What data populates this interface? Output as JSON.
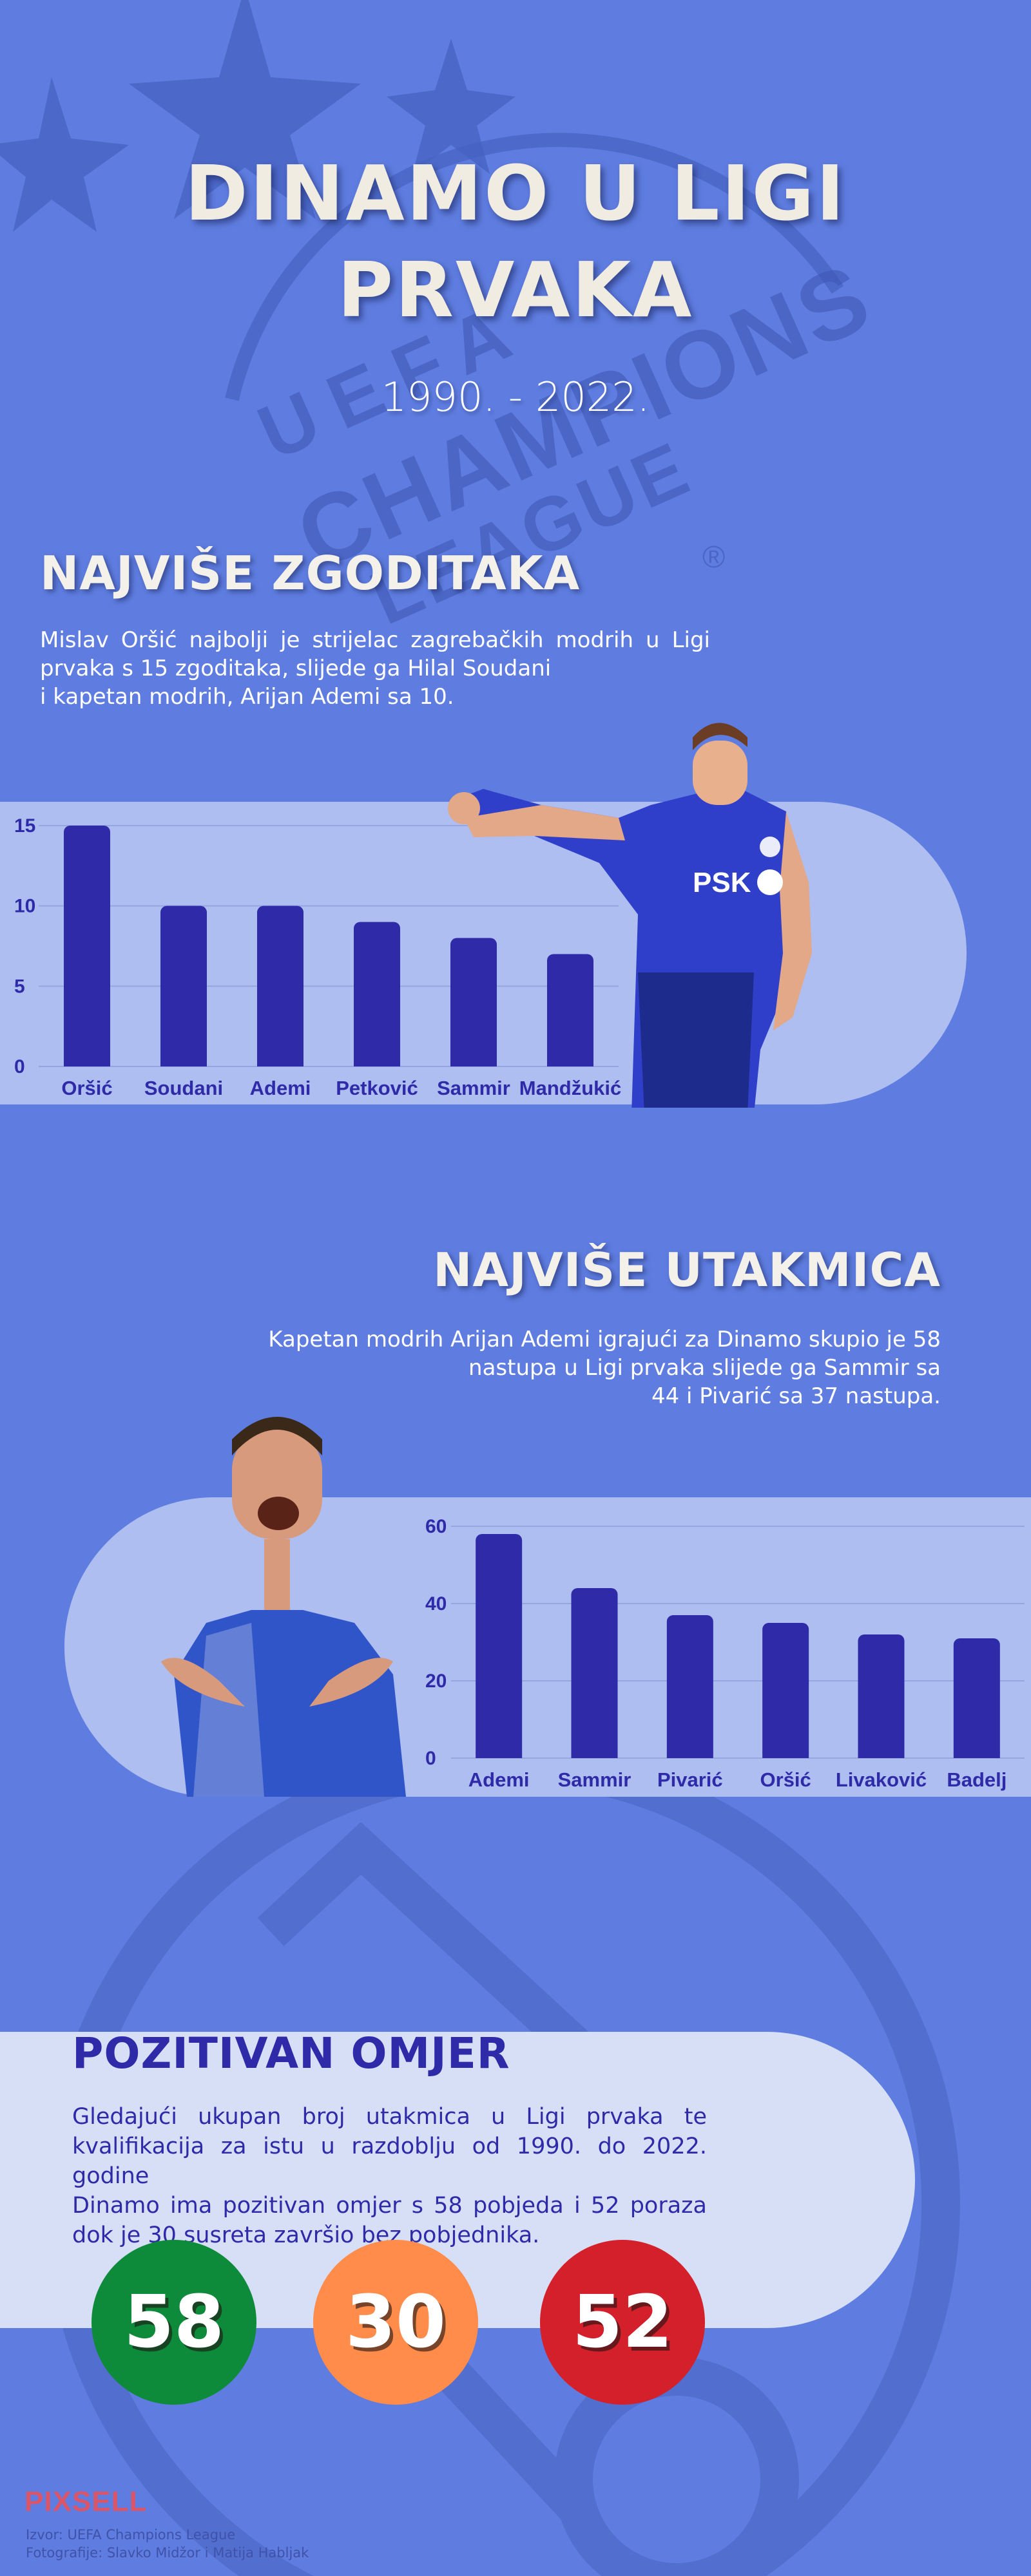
{
  "header": {
    "title_line1": "DINAMO U LIGI",
    "title_line2": "PRVAKA",
    "subtitle": "1990. - 2022."
  },
  "watermark": {
    "text1": "UEFA",
    "text2": "CHAMPIONS",
    "text3": "LEAGUE",
    "registered": "®"
  },
  "goals": {
    "heading": "NAJVIŠE ZGODITAKA",
    "text_lines": [
      "Mislav Oršić najbolji je strijelac zagrebačkih modrih u Ligi",
      "prvaka s 15 zgoditaka, slijede ga Hilal Soudani",
      "i kapetan modrih, Arijan Ademi sa 10."
    ]
  },
  "apps": {
    "heading": "NAJVIŠE UTAKMICA",
    "text_lines": [
      "Kapetan modrih Arijan Ademi igrajući za Dinamo skupio je 58",
      "nastupa u Ligi prvaka slijede ga Sammir sa",
      "44 i Pivarić sa 37 nastupa."
    ]
  },
  "record": {
    "heading": "POZITIVAN OMJER",
    "text_lines": [
      "Gledajući ukupan broj utakmica u Ligi prvaka te",
      "kvalifikacija za istu u razdoblju od 1990. do 2022. godine",
      "Dinamo ima pozitivan omjer s 58 pobjeda i 52 poraza",
      "dok je 30 susreta završio bez pobjednika."
    ],
    "wins": "58",
    "draws": "30",
    "losses": "52",
    "colors": {
      "wins": "#0e8a3b",
      "draws": "#ff8c4a",
      "losses": "#d4202a"
    }
  },
  "footer": {
    "brand": "PIXSELL",
    "source": "Izvor: UEFA Champions League",
    "photos": "Fotografije: Slavko Midžor i Matija Habljak"
  },
  "chart_data": [
    {
      "type": "bar",
      "categories": [
        "Oršić",
        "Soudani",
        "Ademi",
        "Petković",
        "Sammir",
        "Mandžukić"
      ],
      "values": [
        15,
        10,
        10,
        9,
        8,
        7
      ],
      "ylim": [
        0,
        15
      ],
      "yticks": [
        0,
        5,
        10,
        15
      ],
      "grid": true,
      "bar_color": "#2e2aa8"
    },
    {
      "type": "bar",
      "categories": [
        "Ademi",
        "Sammir",
        "Pivarić",
        "Oršić",
        "Livaković",
        "Badelj"
      ],
      "values": [
        58,
        44,
        37,
        35,
        32,
        31
      ],
      "ylim": [
        0,
        60
      ],
      "yticks": [
        0,
        20,
        40,
        60
      ],
      "grid": true,
      "bar_color": "#2e2aa8"
    }
  ]
}
